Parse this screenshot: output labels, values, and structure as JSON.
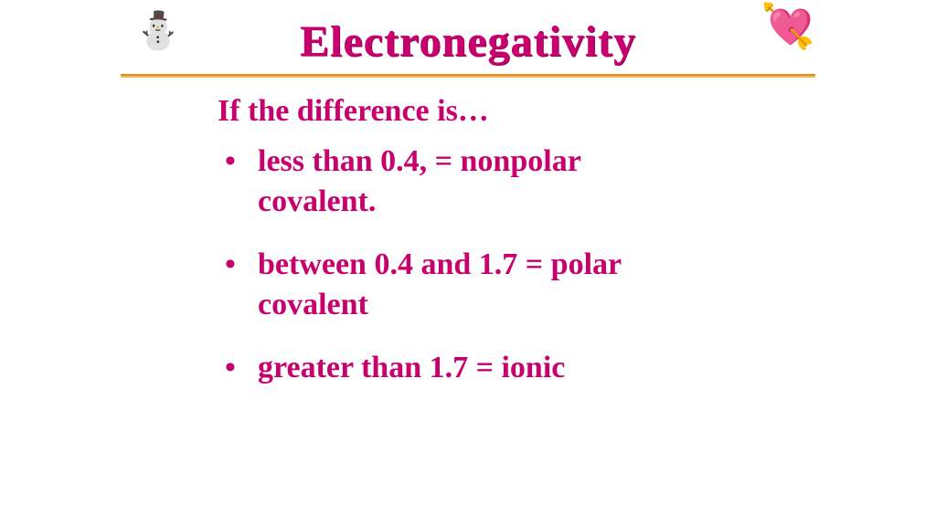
{
  "title": "Electronegativity",
  "icons": {
    "left": "⛄",
    "right": "💘"
  },
  "colors": {
    "title": "#c7006e",
    "text": "#c7006e",
    "rule_top": "#e68a1e",
    "rule_bottom": "#f4b55a",
    "background": "#ffffff"
  },
  "typography": {
    "family": "Comic Sans MS",
    "title_size_pt": 36,
    "body_size_pt": 26,
    "weight": "bold"
  },
  "content": {
    "intro": "If the difference is…",
    "bullets": [
      "less than 0.4, = nonpolar covalent.",
      "between 0.4 and 1.7 = polar covalent",
      "greater than 1.7 = ionic"
    ]
  }
}
